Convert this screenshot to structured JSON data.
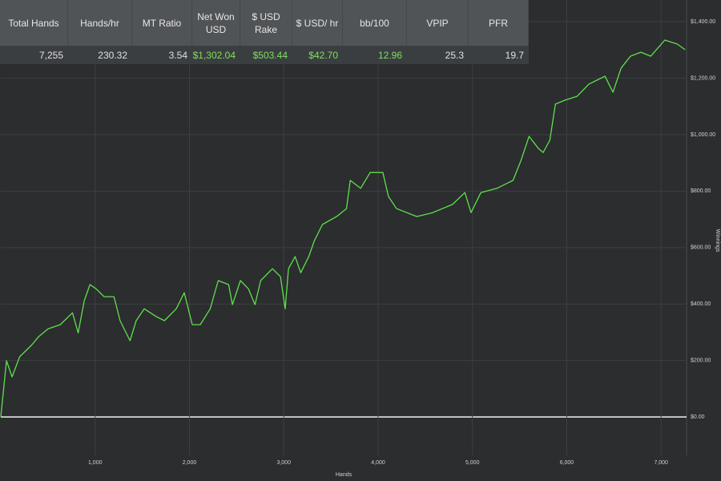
{
  "stats_table": {
    "headers": [
      "Total Hands",
      "Hands/hr",
      "MT Ratio",
      "Net Won USD",
      "$ USD Rake",
      "$ USD/ hr",
      "bb/100",
      "VPIP",
      "PFR"
    ],
    "values": [
      "7,255",
      "230.32",
      "3.54",
      "$1,302.04",
      "$503.44",
      "$42.70",
      "12.96",
      "25.3",
      "19.7"
    ],
    "value_colors": [
      "#e0e0e0",
      "#e0e0e0",
      "#e0e0e0",
      "#7ee05a",
      "#7ee05a",
      "#7ee05a",
      "#7ee05a",
      "#e0e0e0",
      "#e0e0e0"
    ]
  },
  "chart_data": {
    "type": "line",
    "x_label": "Hands",
    "y_label": "Winnings",
    "color": "#5fe04c",
    "x": [
      0,
      60,
      120,
      200,
      330,
      400,
      500,
      630,
      760,
      820,
      885,
      945,
      1010,
      1095,
      1200,
      1265,
      1370,
      1435,
      1520,
      1650,
      1735,
      1860,
      1945,
      2030,
      2115,
      2220,
      2305,
      2415,
      2455,
      2540,
      2625,
      2695,
      2755,
      2880,
      2965,
      3015,
      3050,
      3120,
      3180,
      3265,
      3325,
      3410,
      3560,
      3665,
      3705,
      3815,
      3915,
      4050,
      4110,
      4195,
      4410,
      4580,
      4790,
      4920,
      4985,
      5090,
      5260,
      5430,
      5515,
      5600,
      5700,
      5750,
      5820,
      5880,
      5980,
      6110,
      6235,
      6320,
      6405,
      6490,
      6575,
      6675,
      6785,
      6890,
      7040,
      7170,
      7255
    ],
    "values": [
      0,
      199,
      142,
      213,
      256,
      284,
      312,
      327,
      369,
      298,
      412,
      469,
      454,
      426,
      426,
      341,
      270,
      341,
      383,
      355,
      341,
      383,
      440,
      327,
      327,
      383,
      483,
      469,
      398,
      483,
      454,
      398,
      483,
      525,
      497,
      383,
      525,
      568,
      511,
      568,
      625,
      682,
      710,
      738,
      838,
      810,
      866,
      866,
      781,
      738,
      710,
      724,
      753,
      795,
      724,
      795,
      810,
      838,
      909,
      994,
      951,
      937,
      980,
      1108,
      1122,
      1136,
      1179,
      1193,
      1207,
      1150,
      1235,
      1278,
      1292,
      1278,
      1335,
      1321,
      1301
    ],
    "xlim": [
      0,
      7270
    ],
    "ylim": [
      -136,
      1477
    ],
    "xticks": [
      {
        "value": 1000,
        "label": "1,000"
      },
      {
        "value": 2000,
        "label": "2,000"
      },
      {
        "value": 3000,
        "label": "3,000"
      },
      {
        "value": 4000,
        "label": "4,000"
      },
      {
        "value": 5000,
        "label": "5,000"
      },
      {
        "value": 6000,
        "label": "6,000"
      },
      {
        "value": 7000,
        "label": "7,000"
      }
    ],
    "yticks": [
      {
        "value": 0,
        "label": "$0.00"
      },
      {
        "value": 200,
        "label": "$200.00"
      },
      {
        "value": 400,
        "label": "$400.00"
      },
      {
        "value": 600,
        "label": "$600.00"
      },
      {
        "value": 800,
        "label": "$800.00"
      },
      {
        "value": 1000,
        "label": "$1,000.00"
      },
      {
        "value": 1200,
        "label": "$1,200.00"
      },
      {
        "value": 1400,
        "label": "$1,400.00"
      }
    ],
    "grid": true
  }
}
